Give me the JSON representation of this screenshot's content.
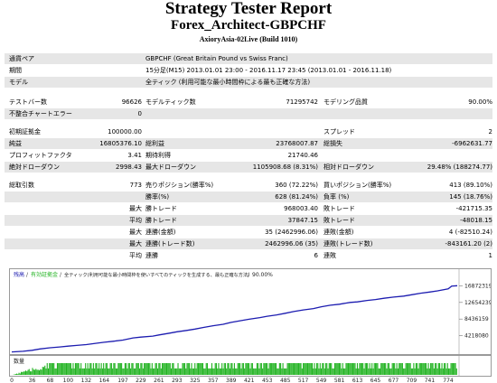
{
  "header": {
    "title": "Strategy Tester Report",
    "subtitle": "Forex_Architect-GBPCHF",
    "server": "AxioryAsia-02Live (Build 1010)"
  },
  "info": {
    "symbol_label": "通貨ペア",
    "symbol_value": "GBPCHF (Great Britain Pound vs Swiss Franc)",
    "period_label": "期間",
    "period_value": "15分足(M15) 2013.01.01 23:00 - 2016.11.17 23:45 (2013.01.01 - 2016.11.18)",
    "model_label": "モデル",
    "model_value": "全ティック (利用可能な最小時間枠による最も正確な方法)"
  },
  "stats1": {
    "bars_label": "テストバー数",
    "bars_value": "96626",
    "ticks_label": "モデルティック数",
    "ticks_value": "71295742",
    "quality_label": "モデリング品質",
    "quality_value": "90.00%",
    "errors_label": "不整合チャートエラー",
    "errors_value": "0"
  },
  "stats2": {
    "deposit_label": "初期証拠金",
    "deposit_value": "100000.00",
    "spread_label": "スプレッド",
    "spread_value": "2",
    "net_label": "純益",
    "net_value": "16805376.10",
    "gross_profit_label": "総利益",
    "gross_profit_value": "23768007.87",
    "gross_loss_label": "総損失",
    "gross_loss_value": "-6962631.77",
    "pf_label": "プロフィットファクタ",
    "pf_value": "3.41",
    "expected_label": "期待利得",
    "expected_value": "21740.46",
    "abs_dd_label": "絶対ドローダウン",
    "abs_dd_value": "2998.43",
    "max_dd_label": "最大ドローダウン",
    "max_dd_value": "1105908.68 (8.31%)",
    "rel_dd_label": "相対ドローダウン",
    "rel_dd_value": "29.48% (188274.77)"
  },
  "stats3": {
    "trades_label": "総取引数",
    "trades_value": "773",
    "short_label": "売りポジション(勝率%)",
    "short_value": "360 (72.22%)",
    "long_label": "買いポジション(勝率%)",
    "long_value": "413 (89.10%)",
    "win_pct_label": "勝率(%)",
    "win_pct_value": "628 (81.24%)",
    "loss_pct_label": "負率 (%)",
    "loss_pct_value": "145 (18.76%)",
    "max_word": "最大",
    "avg_word": "平均",
    "largest_win_label": "勝トレード",
    "largest_win_value": "968003.40",
    "largest_loss_label": "敗トレード",
    "largest_loss_value": "-421715.35",
    "avg_win_label": "勝トレード",
    "avg_win_value": "37847.15",
    "avg_loss_label": "敗トレード",
    "avg_loss_value": "-48018.15",
    "cons_wins_label": "連勝(金額)",
    "cons_wins_value": "35 (2462996.06)",
    "cons_losses_label": "連敗(金額)",
    "cons_losses_value": "4 (-82510.24)",
    "cons_profit_label": "連勝(トレード数)",
    "cons_profit_value": "2462996.06 (35)",
    "cons_loss_label": "連敗(トレード数)",
    "cons_loss_value": "-843161.20 (2)",
    "avg_cons_wins_label": "連勝",
    "avg_cons_wins_value": "6",
    "avg_cons_losses_label": "連敗",
    "avg_cons_losses_value": "1"
  },
  "chart_data": {
    "type": "line",
    "legend": [
      "残高",
      "有効証拠金",
      "全ティック(利用可能な最小時間枠を使いすべてのティックを生成する、最も正確な方法)",
      "90.00%"
    ],
    "series": [
      {
        "name": "残高",
        "x": [
          0,
          20,
          36,
          50,
          68,
          85,
          100,
          115,
          132,
          150,
          164,
          180,
          197,
          215,
          229,
          250,
          261,
          280,
          293,
          310,
          325,
          340,
          357,
          375,
          389,
          405,
          421,
          440,
          453,
          470,
          485,
          500,
          517,
          535,
          549,
          565,
          581,
          600,
          613,
          630,
          645,
          660,
          677,
          695,
          709,
          725,
          741,
          755,
          774,
          780,
          790
        ],
        "values": [
          100000,
          250000,
          500000,
          850000,
          1150000,
          1350000,
          1550000,
          1750000,
          1950000,
          2300000,
          2550000,
          2800000,
          3100000,
          3650000,
          3850000,
          4100000,
          4400000,
          4850000,
          5200000,
          5550000,
          5900000,
          6300000,
          6750000,
          7100000,
          7600000,
          8000000,
          8400000,
          8800000,
          9150000,
          9500000,
          9900000,
          10350000,
          10750000,
          11100000,
          11550000,
          11950000,
          12200000,
          12650000,
          12800000,
          13150000,
          13400000,
          13700000,
          14000000,
          14250000,
          14600000,
          15000000,
          15300000,
          15600000,
          16100000,
          16800000,
          16900000
        ]
      }
    ],
    "yticks": [
      4218080,
      8436159,
      12654239,
      16872319
    ],
    "xticks": [
      0,
      36,
      68,
      100,
      132,
      164,
      197,
      229,
      261,
      293,
      325,
      357,
      389,
      421,
      453,
      485,
      517,
      549,
      581,
      613,
      645,
      677,
      709,
      741,
      774
    ],
    "xlim": [
      0,
      790
    ],
    "ylim": [
      0,
      18800000
    ],
    "volume_label": "数量",
    "colors": {
      "balance": "#1c1cb0",
      "volume": "#22b322"
    }
  }
}
